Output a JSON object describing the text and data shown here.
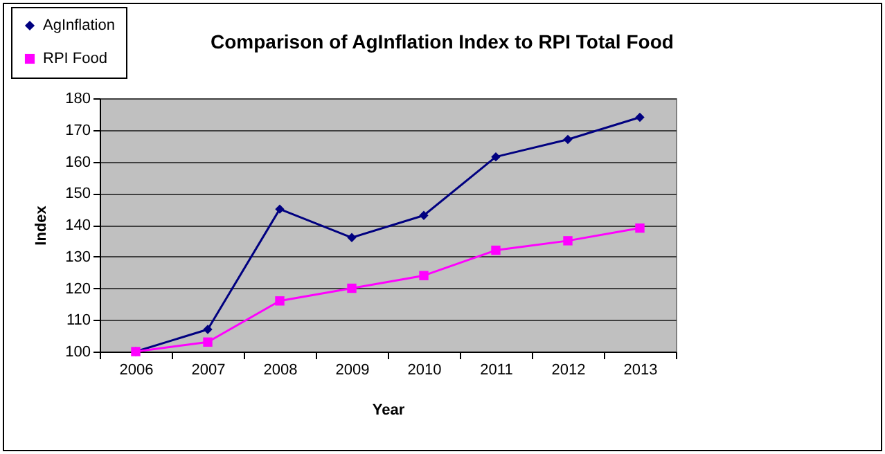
{
  "chart_data": {
    "type": "line",
    "title": "Comparison of AgInflation Index to RPI Total Food",
    "xlabel": "Year",
    "ylabel": "Index",
    "categories": [
      "2006",
      "2007",
      "2008",
      "2009",
      "2010",
      "2011",
      "2012",
      "2013"
    ],
    "series": [
      {
        "name": "AgInflation",
        "color": "#000080",
        "marker": "diamond",
        "values": [
          100,
          107,
          145,
          136,
          143,
          161.5,
          167,
          174
        ]
      },
      {
        "name": "RPI Food",
        "color": "#ff00ff",
        "marker": "square",
        "values": [
          100,
          103,
          116,
          120,
          124,
          132,
          135,
          139
        ]
      }
    ],
    "ylim": [
      100,
      180
    ],
    "yticks": [
      100,
      110,
      120,
      130,
      140,
      150,
      160,
      170,
      180
    ],
    "grid": "y",
    "legend": "top left"
  }
}
